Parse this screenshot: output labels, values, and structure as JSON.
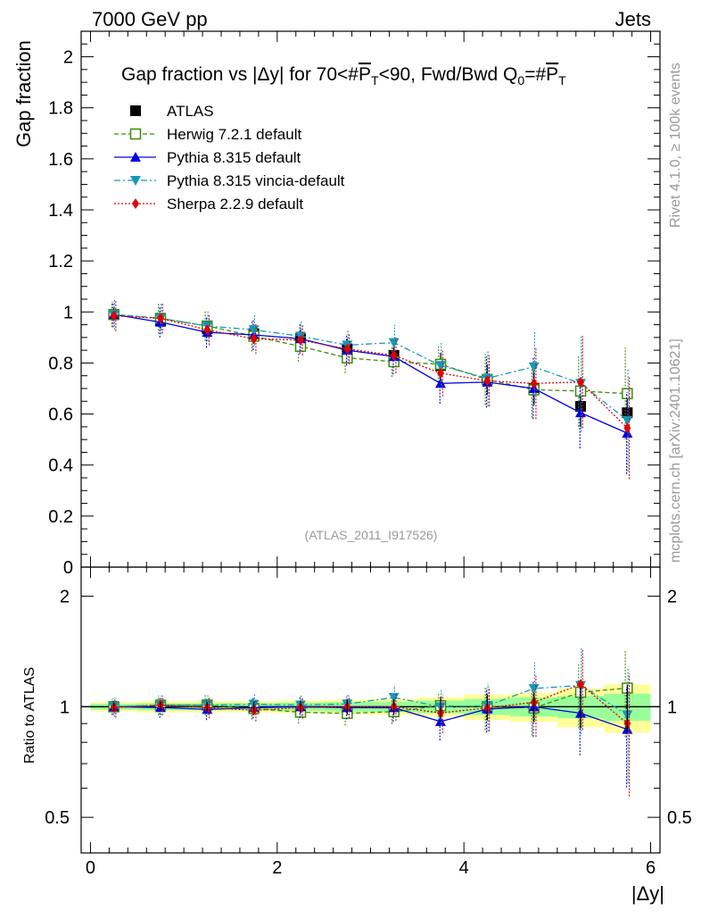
{
  "header": {
    "left": "7000 GeV pp",
    "right": "Jets"
  },
  "side_labels": {
    "rivet": "Rivet 4.1.0, ≥ 100k events",
    "mcplots": "mcplots.cern.ch [arXiv:2401.10621]"
  },
  "chart_data": {
    "type": "line",
    "title": "Gap fraction vs |Δy| for 70<#P̅T<90, Fwd/Bwd Q0=#P̅T",
    "title_parts": {
      "prefix": "Gap fraction vs |Δy| for 70<#",
      "p1": "P",
      "t1": "T",
      "middle": "<90, Fwd/Bwd Q",
      "q_sub": "0",
      "eq": "=#",
      "p2": "P",
      "t2": "T"
    },
    "annotation": "(ATLAS_2011_I917526)",
    "ylabel_main": "Gap fraction",
    "ylabel_ratio": "Ratio to ATLAS",
    "xlabel": "|Δy|",
    "xlim": [
      -0.1,
      6.1
    ],
    "ylim_main": [
      0,
      2.1
    ],
    "ylim_ratio": [
      0.4,
      2.4
    ],
    "x_ticks": [
      "0",
      "2",
      "4",
      "6"
    ],
    "y_ticks_main": [
      "0",
      "0.2",
      "0.4",
      "0.6",
      "0.8",
      "1",
      "1.2",
      "1.4",
      "1.6",
      "1.8",
      "2"
    ],
    "y_ticks_ratio": [
      "0.5",
      "1",
      "2"
    ],
    "x": [
      0.25,
      0.75,
      1.25,
      1.75,
      2.25,
      2.75,
      3.25,
      3.75,
      4.25,
      4.75,
      5.25,
      5.75
    ],
    "data": {
      "name": "ATLAS",
      "values": [
        0.99,
        0.965,
        0.935,
        0.915,
        0.895,
        0.855,
        0.83,
        0.79,
        0.735,
        0.7,
        0.63,
        0.605
      ],
      "errors": [
        0.025,
        0.03,
        0.03,
        0.03,
        0.035,
        0.04,
        0.04,
        0.05,
        0.06,
        0.065,
        0.08,
        0.09
      ]
    },
    "series": [
      {
        "name": "Herwig 7.2.1 default",
        "color": "#3a8c0a",
        "dash": "5,3",
        "marker": "open-square",
        "values": [
          0.99,
          0.975,
          0.945,
          0.905,
          0.865,
          0.82,
          0.805,
          0.795,
          0.735,
          0.695,
          0.69,
          0.68
        ],
        "errors": [
          0.05,
          0.06,
          0.06,
          0.06,
          0.06,
          0.06,
          0.06,
          0.07,
          0.1,
          0.11,
          0.14,
          0.18
        ]
      },
      {
        "name": "Pythia 8.315 default",
        "color": "#0000e0",
        "dash": "",
        "marker": "triangle-up",
        "values": [
          0.99,
          0.96,
          0.92,
          0.91,
          0.895,
          0.85,
          0.825,
          0.72,
          0.725,
          0.7,
          0.605,
          0.525
        ],
        "errors": [
          0.05,
          0.06,
          0.06,
          0.06,
          0.06,
          0.06,
          0.07,
          0.08,
          0.1,
          0.12,
          0.14,
          0.16
        ]
      },
      {
        "name": "Pythia 8.315 vincia-default",
        "color": "#1499b8",
        "dash": "7,3,2,3",
        "marker": "triangle-down",
        "values": [
          0.99,
          0.975,
          0.945,
          0.93,
          0.905,
          0.87,
          0.88,
          0.79,
          0.74,
          0.785,
          0.72,
          0.575
        ],
        "errors": [
          0.06,
          0.06,
          0.06,
          0.06,
          0.06,
          0.06,
          0.07,
          0.09,
          0.11,
          0.14,
          0.19,
          0.2
        ]
      },
      {
        "name": "Sherpa 2.2.9 default",
        "color": "#e00000",
        "dash": "2,2",
        "marker": "diamond",
        "values": [
          0.985,
          0.975,
          0.93,
          0.895,
          0.89,
          0.855,
          0.83,
          0.76,
          0.73,
          0.72,
          0.725,
          0.545
        ],
        "errors": [
          0.06,
          0.06,
          0.06,
          0.06,
          0.06,
          0.06,
          0.07,
          0.09,
          0.1,
          0.14,
          0.18,
          0.2
        ]
      }
    ],
    "ratio_band_yellow": [
      0.028,
      0.035,
      0.035,
      0.035,
      0.04,
      0.045,
      0.05,
      0.06,
      0.08,
      0.09,
      0.12,
      0.15
    ],
    "ratio_band_green": [
      0.018,
      0.022,
      0.022,
      0.022,
      0.026,
      0.03,
      0.032,
      0.04,
      0.05,
      0.06,
      0.07,
      0.085
    ]
  }
}
